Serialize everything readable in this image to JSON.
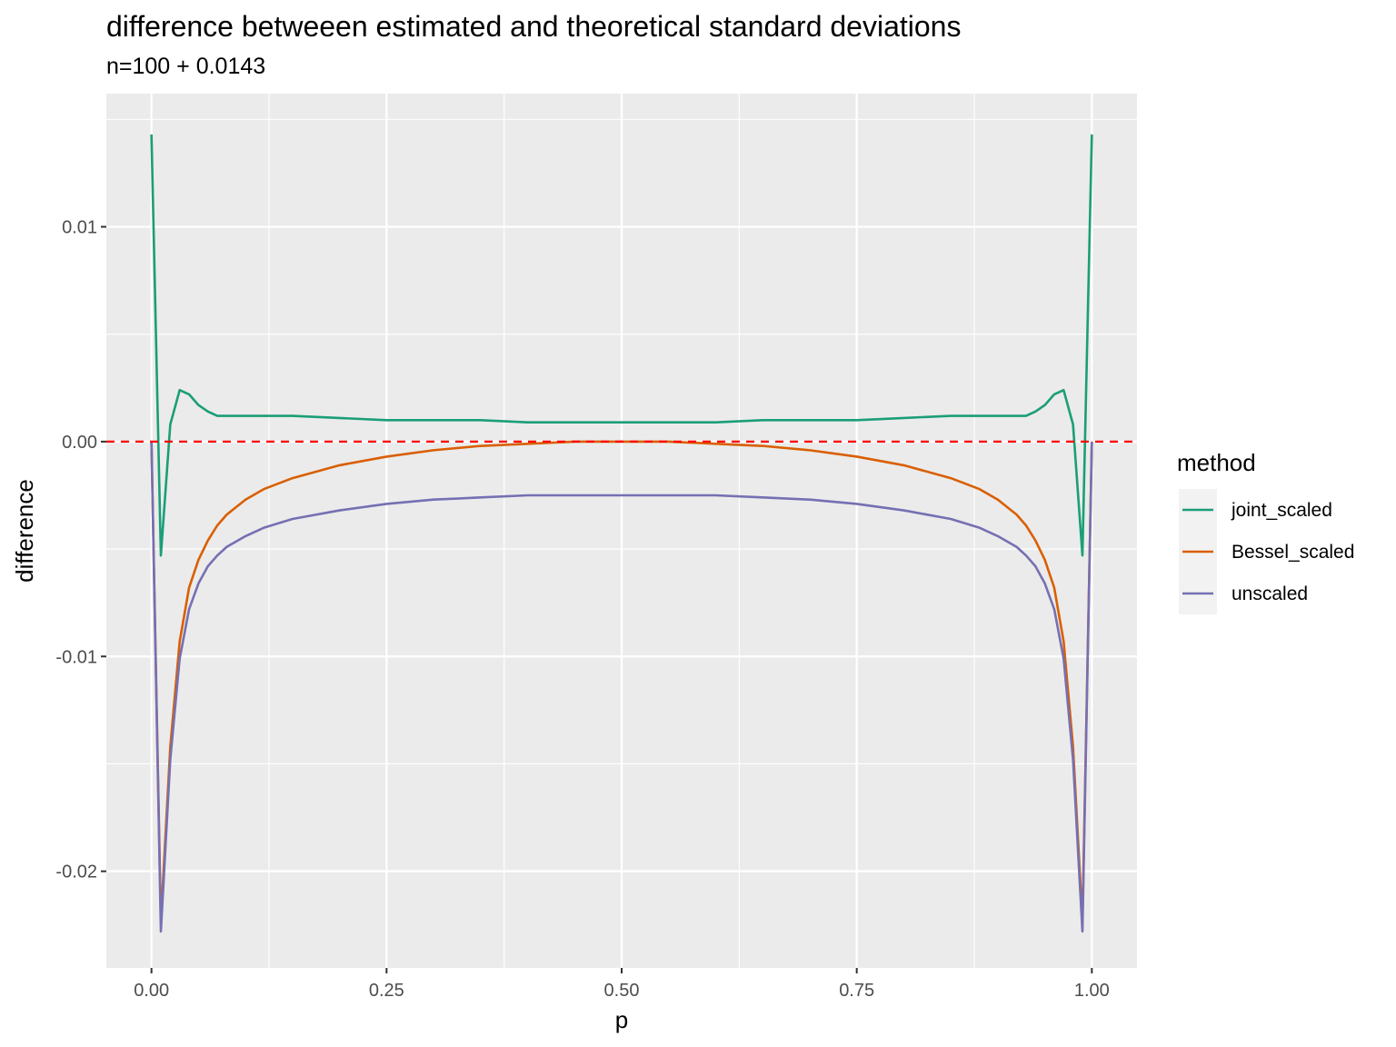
{
  "chart_data": {
    "type": "line",
    "title": "difference betweeen estimated and theoretical standard deviations",
    "subtitle": "n=100 + 0.0143",
    "xlabel": "p",
    "ylabel": "difference",
    "xlim": [
      -0.048,
      1.048
    ],
    "ylim": [
      -0.0245,
      0.0162
    ],
    "x_ticks": [
      {
        "value": 0.0,
        "label": "0.00"
      },
      {
        "value": 0.25,
        "label": "0.25"
      },
      {
        "value": 0.5,
        "label": "0.50"
      },
      {
        "value": 0.75,
        "label": "0.75"
      },
      {
        "value": 1.0,
        "label": "1.00"
      }
    ],
    "x_minor_ticks": [
      0.125,
      0.375,
      0.625,
      0.875
    ],
    "y_ticks": [
      {
        "value": -0.02,
        "label": "-0.02"
      },
      {
        "value": -0.01,
        "label": "-0.01"
      },
      {
        "value": 0.0,
        "label": "0.00"
      },
      {
        "value": 0.01,
        "label": "0.01"
      }
    ],
    "y_minor_ticks": [
      -0.015,
      -0.005,
      0.005,
      0.015
    ],
    "grid": true,
    "reference_line": {
      "y": 0.0,
      "color": "#ff0000",
      "style": "dashed"
    },
    "legend": {
      "title": "method",
      "position": "right"
    },
    "series": [
      {
        "name": "joint_scaled",
        "color": "#1b9e77",
        "points": [
          [
            0.0,
            0.0143
          ],
          [
            0.01,
            -0.0053
          ],
          [
            0.02,
            0.0008
          ],
          [
            0.03,
            0.0024
          ],
          [
            0.04,
            0.0022
          ],
          [
            0.05,
            0.0017
          ],
          [
            0.06,
            0.0014
          ],
          [
            0.07,
            0.0012
          ],
          [
            0.08,
            0.0012
          ],
          [
            0.1,
            0.0012
          ],
          [
            0.12,
            0.0012
          ],
          [
            0.15,
            0.0012
          ],
          [
            0.2,
            0.0011
          ],
          [
            0.25,
            0.001
          ],
          [
            0.3,
            0.001
          ],
          [
            0.35,
            0.001
          ],
          [
            0.4,
            0.0009
          ],
          [
            0.45,
            0.0009
          ],
          [
            0.5,
            0.0009
          ],
          [
            0.55,
            0.0009
          ],
          [
            0.6,
            0.0009
          ],
          [
            0.65,
            0.001
          ],
          [
            0.7,
            0.001
          ],
          [
            0.75,
            0.001
          ],
          [
            0.8,
            0.0011
          ],
          [
            0.85,
            0.0012
          ],
          [
            0.88,
            0.0012
          ],
          [
            0.9,
            0.0012
          ],
          [
            0.92,
            0.0012
          ],
          [
            0.93,
            0.0012
          ],
          [
            0.94,
            0.0014
          ],
          [
            0.95,
            0.0017
          ],
          [
            0.96,
            0.0022
          ],
          [
            0.97,
            0.0024
          ],
          [
            0.98,
            0.0008
          ],
          [
            0.99,
            -0.0053
          ],
          [
            1.0,
            0.0143
          ]
        ]
      },
      {
        "name": "Bessel_scaled",
        "color": "#d95f02",
        "points": [
          [
            0.0,
            0.0
          ],
          [
            0.01,
            -0.0223
          ],
          [
            0.02,
            -0.0142
          ],
          [
            0.03,
            -0.0093
          ],
          [
            0.04,
            -0.0068
          ],
          [
            0.05,
            -0.0055
          ],
          [
            0.06,
            -0.0046
          ],
          [
            0.07,
            -0.0039
          ],
          [
            0.08,
            -0.0034
          ],
          [
            0.1,
            -0.0027
          ],
          [
            0.12,
            -0.0022
          ],
          [
            0.15,
            -0.0017
          ],
          [
            0.2,
            -0.0011
          ],
          [
            0.25,
            -0.0007
          ],
          [
            0.3,
            -0.0004
          ],
          [
            0.35,
            -0.0002
          ],
          [
            0.4,
            -0.0001
          ],
          [
            0.45,
            0.0
          ],
          [
            0.5,
            0.0
          ],
          [
            0.55,
            0.0
          ],
          [
            0.6,
            -0.0001
          ],
          [
            0.65,
            -0.0002
          ],
          [
            0.7,
            -0.0004
          ],
          [
            0.75,
            -0.0007
          ],
          [
            0.8,
            -0.0011
          ],
          [
            0.85,
            -0.0017
          ],
          [
            0.88,
            -0.0022
          ],
          [
            0.9,
            -0.0027
          ],
          [
            0.92,
            -0.0034
          ],
          [
            0.93,
            -0.0039
          ],
          [
            0.94,
            -0.0046
          ],
          [
            0.95,
            -0.0055
          ],
          [
            0.96,
            -0.0068
          ],
          [
            0.97,
            -0.0093
          ],
          [
            0.98,
            -0.0142
          ],
          [
            0.99,
            -0.0223
          ],
          [
            1.0,
            0.0
          ]
        ]
      },
      {
        "name": "unscaled",
        "color": "#7570b3",
        "points": [
          [
            0.0,
            0.0
          ],
          [
            0.01,
            -0.0228
          ],
          [
            0.02,
            -0.0148
          ],
          [
            0.03,
            -0.0101
          ],
          [
            0.04,
            -0.0078
          ],
          [
            0.05,
            -0.0066
          ],
          [
            0.06,
            -0.0058
          ],
          [
            0.07,
            -0.0053
          ],
          [
            0.08,
            -0.0049
          ],
          [
            0.1,
            -0.0044
          ],
          [
            0.12,
            -0.004
          ],
          [
            0.15,
            -0.0036
          ],
          [
            0.2,
            -0.0032
          ],
          [
            0.25,
            -0.0029
          ],
          [
            0.3,
            -0.0027
          ],
          [
            0.35,
            -0.0026
          ],
          [
            0.4,
            -0.0025
          ],
          [
            0.45,
            -0.0025
          ],
          [
            0.5,
            -0.0025
          ],
          [
            0.55,
            -0.0025
          ],
          [
            0.6,
            -0.0025
          ],
          [
            0.65,
            -0.0026
          ],
          [
            0.7,
            -0.0027
          ],
          [
            0.75,
            -0.0029
          ],
          [
            0.8,
            -0.0032
          ],
          [
            0.85,
            -0.0036
          ],
          [
            0.88,
            -0.004
          ],
          [
            0.9,
            -0.0044
          ],
          [
            0.92,
            -0.0049
          ],
          [
            0.93,
            -0.0053
          ],
          [
            0.94,
            -0.0058
          ],
          [
            0.95,
            -0.0066
          ],
          [
            0.96,
            -0.0078
          ],
          [
            0.97,
            -0.0101
          ],
          [
            0.98,
            -0.0148
          ],
          [
            0.99,
            -0.0228
          ],
          [
            1.0,
            0.0
          ]
        ]
      }
    ]
  }
}
